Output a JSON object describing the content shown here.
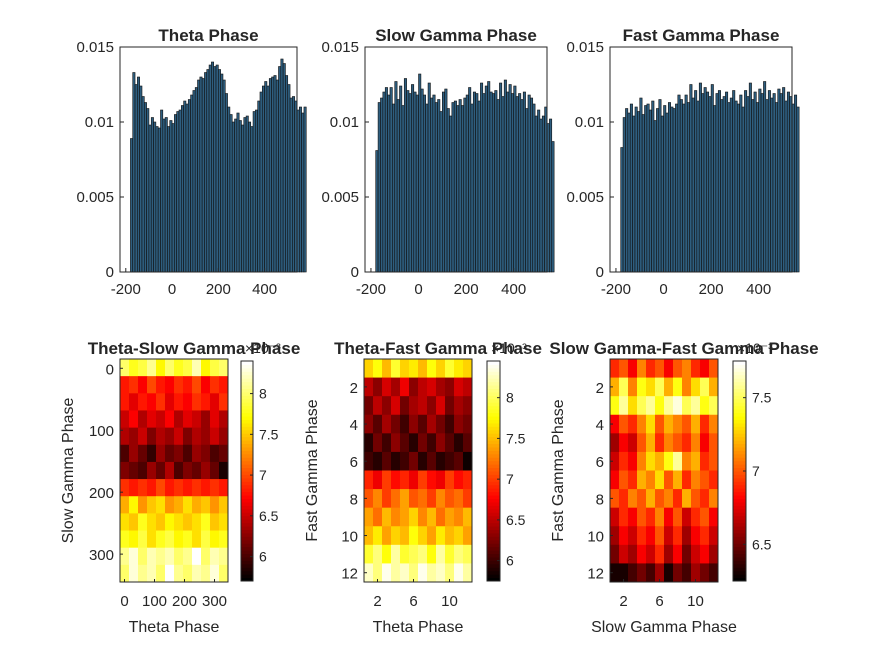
{
  "colors": {
    "bar_face": "#2e5e7f",
    "bar_edge": "#111111",
    "axis": "#262626",
    "colormap": "hot"
  },
  "chart_data": [
    {
      "type": "bar",
      "title": "Theta Phase",
      "xlabel": "",
      "ylabel": "",
      "xlim": [
        -225,
        540
      ],
      "ylim": [
        0,
        0.015
      ],
      "xticks": [
        "-200",
        "0",
        "200",
        "400"
      ],
      "xtick_values": [
        -200,
        0,
        200,
        400
      ],
      "yticks": [
        "0",
        "0.005",
        "0.01",
        "0.015"
      ],
      "ytick_values": [
        0,
        0.005,
        0.01,
        0.015
      ],
      "x_start": -180,
      "bin_width": 10,
      "values": [
        0.0089,
        0.0133,
        0.0125,
        0.013,
        0.0124,
        0.0117,
        0.0113,
        0.0109,
        0.0098,
        0.0103,
        0.01,
        0.0097,
        0.0096,
        0.0108,
        0.0102,
        0.0103,
        0.0097,
        0.0101,
        0.0099,
        0.0105,
        0.0107,
        0.0108,
        0.0111,
        0.0114,
        0.0112,
        0.0115,
        0.0118,
        0.0121,
        0.0123,
        0.0128,
        0.013,
        0.0129,
        0.0133,
        0.0135,
        0.0138,
        0.014,
        0.0137,
        0.0138,
        0.0135,
        0.0132,
        0.0128,
        0.0119,
        0.011,
        0.0105,
        0.01,
        0.0102,
        0.0106,
        0.0101,
        0.0098,
        0.0103,
        0.0104,
        0.01,
        0.0097,
        0.0107,
        0.0108,
        0.0114,
        0.012,
        0.0124,
        0.0127,
        0.0124,
        0.0129,
        0.013,
        0.0131,
        0.0128,
        0.0137,
        0.0142,
        0.0139,
        0.0131,
        0.0125,
        0.0116,
        0.0117,
        0.0114,
        0.0108,
        0.011,
        0.0106,
        0.011
      ]
    },
    {
      "type": "bar",
      "title": "Slow Gamma Phase",
      "xlabel": "",
      "ylabel": "",
      "xlim": [
        -225,
        540
      ],
      "ylim": [
        0,
        0.015
      ],
      "xticks": [
        "-200",
        "0",
        "200",
        "400"
      ],
      "xtick_values": [
        -200,
        0,
        200,
        400
      ],
      "yticks": [
        "0",
        "0.005",
        "0.01",
        "0.015"
      ],
      "ytick_values": [
        0,
        0.005,
        0.01,
        0.015
      ],
      "x_start": -180,
      "bin_width": 10,
      "values": [
        0.0081,
        0.0113,
        0.0116,
        0.012,
        0.0123,
        0.0118,
        0.0123,
        0.0112,
        0.0127,
        0.0115,
        0.0124,
        0.0111,
        0.0129,
        0.0121,
        0.0119,
        0.0125,
        0.012,
        0.0118,
        0.0132,
        0.0122,
        0.0118,
        0.0112,
        0.0126,
        0.0116,
        0.0118,
        0.0113,
        0.0115,
        0.0107,
        0.012,
        0.0122,
        0.0109,
        0.0104,
        0.0113,
        0.0114,
        0.0111,
        0.0115,
        0.0111,
        0.0116,
        0.0118,
        0.0123,
        0.0112,
        0.012,
        0.0119,
        0.0114,
        0.0126,
        0.0119,
        0.0124,
        0.0127,
        0.012,
        0.0119,
        0.0121,
        0.0115,
        0.0126,
        0.0117,
        0.0128,
        0.012,
        0.0125,
        0.0119,
        0.0124,
        0.0117,
        0.0119,
        0.0115,
        0.012,
        0.0109,
        0.0118,
        0.0116,
        0.0112,
        0.0104,
        0.0108,
        0.0102,
        0.0104,
        0.011,
        0.0099,
        0.0102,
        0.0087
      ]
    },
    {
      "type": "bar",
      "title": "Fast Gamma Phase",
      "xlabel": "",
      "ylabel": "",
      "xlim": [
        -225,
        540
      ],
      "ylim": [
        0,
        0.015
      ],
      "xticks": [
        "-200",
        "0",
        "200",
        "400"
      ],
      "xtick_values": [
        -200,
        0,
        200,
        400
      ],
      "yticks": [
        "0",
        "0.005",
        "0.01",
        "0.015"
      ],
      "ytick_values": [
        0,
        0.005,
        0.01,
        0.015
      ],
      "x_start": -180,
      "bin_width": 10,
      "values": [
        0.0083,
        0.0103,
        0.0109,
        0.0106,
        0.0112,
        0.0104,
        0.011,
        0.0107,
        0.0116,
        0.0105,
        0.0111,
        0.0112,
        0.0108,
        0.0114,
        0.0101,
        0.0109,
        0.0115,
        0.0104,
        0.0111,
        0.0106,
        0.0113,
        0.011,
        0.0109,
        0.0112,
        0.0118,
        0.0115,
        0.0112,
        0.0118,
        0.0113,
        0.0125,
        0.0116,
        0.0121,
        0.0114,
        0.0126,
        0.0119,
        0.0123,
        0.012,
        0.0117,
        0.0125,
        0.0111,
        0.0119,
        0.0121,
        0.0115,
        0.0117,
        0.012,
        0.0113,
        0.0116,
        0.0121,
        0.0114,
        0.0112,
        0.0118,
        0.011,
        0.0121,
        0.0117,
        0.0126,
        0.0115,
        0.012,
        0.0113,
        0.0122,
        0.0119,
        0.0127,
        0.0115,
        0.0121,
        0.0116,
        0.0119,
        0.0113,
        0.0122,
        0.0119,
        0.0123,
        0.0114,
        0.012,
        0.0117,
        0.0112,
        0.0118,
        0.011
      ]
    },
    {
      "type": "heatmap",
      "title": "Theta-Slow Gamma Phase",
      "xlabel": "Theta Phase",
      "ylabel": "Slow Gamma Phase",
      "x_extent": [
        -15,
        345
      ],
      "y_extent": [
        -15,
        345
      ],
      "xticks": [
        "0",
        "100",
        "200",
        "300"
      ],
      "xtick_values": [
        0,
        100,
        200,
        300
      ],
      "yticks": [
        "0",
        "100",
        "200",
        "300"
      ],
      "ytick_values": [
        0,
        100,
        200,
        300
      ],
      "clim": [
        5.7,
        8.4
      ],
      "colorbar_ticks": [
        "6",
        "6.5",
        "7",
        "7.5",
        "8"
      ],
      "colorbar_tick_values": [
        6,
        6.5,
        7,
        7.5,
        8
      ],
      "colorbar_exponent": "×10⁻³",
      "values": [
        [
          8.0,
          7.8,
          7.9,
          8.1,
          7.7,
          8.0,
          7.8,
          7.9,
          8.2,
          7.7,
          7.9,
          8.0
        ],
        [
          6.8,
          6.9,
          6.7,
          7.0,
          6.8,
          6.7,
          6.9,
          6.8,
          7.0,
          6.7,
          6.9,
          6.8
        ],
        [
          6.8,
          6.6,
          6.8,
          6.7,
          6.9,
          6.6,
          6.8,
          6.7,
          6.9,
          6.8,
          6.6,
          6.9
        ],
        [
          6.5,
          6.7,
          6.4,
          6.6,
          6.5,
          6.7,
          6.4,
          6.6,
          6.5,
          6.3,
          6.6,
          6.4
        ],
        [
          6.4,
          6.3,
          6.5,
          6.2,
          6.4,
          6.3,
          6.5,
          6.2,
          6.4,
          6.3,
          6.5,
          6.3
        ],
        [
          6.0,
          6.3,
          6.1,
          5.9,
          6.3,
          6.1,
          6.2,
          6.0,
          6.3,
          6.2,
          6.0,
          6.1
        ],
        [
          6.2,
          6.1,
          6.0,
          6.3,
          6.1,
          6.4,
          6.0,
          6.2,
          6.1,
          6.3,
          6.1,
          5.8
        ],
        [
          6.9,
          6.8,
          6.9,
          6.8,
          7.0,
          6.8,
          6.9,
          6.8,
          6.9,
          6.8,
          6.9,
          6.8
        ],
        [
          7.4,
          7.7,
          7.3,
          7.5,
          7.6,
          7.3,
          7.4,
          7.6,
          7.4,
          7.5,
          7.3,
          7.5
        ],
        [
          7.6,
          7.5,
          7.8,
          7.6,
          7.5,
          7.7,
          7.6,
          7.5,
          7.6,
          7.8,
          7.5,
          7.6
        ],
        [
          7.8,
          7.7,
          7.9,
          7.6,
          7.8,
          7.9,
          7.7,
          7.8,
          7.6,
          7.9,
          7.7,
          7.8
        ],
        [
          8.1,
          8.3,
          8.0,
          8.2,
          8.1,
          8.2,
          8.0,
          8.1,
          8.4,
          8.0,
          8.2,
          8.1
        ],
        [
          8.0,
          8.3,
          8.1,
          8.2,
          8.0,
          8.4,
          8.1,
          8.0,
          8.2,
          8.1,
          8.3,
          8.0
        ]
      ]
    },
    {
      "type": "heatmap",
      "title": "Theta-Fast Gamma Phase",
      "xlabel": "Theta Phase",
      "ylabel": "Fast Gamma Phase",
      "x_extent": [
        0.5,
        12.5
      ],
      "y_extent": [
        0.5,
        12.5
      ],
      "xticks": [
        "2",
        "6",
        "10"
      ],
      "xtick_values": [
        2,
        6,
        10
      ],
      "yticks": [
        "2",
        "4",
        "6",
        "8",
        "10",
        "12"
      ],
      "ytick_values": [
        2,
        4,
        6,
        8,
        10,
        12
      ],
      "clim": [
        5.75,
        8.45
      ],
      "colorbar_ticks": [
        "6",
        "6.5",
        "7",
        "7.5",
        "8"
      ],
      "colorbar_tick_values": [
        6,
        6.5,
        7,
        7.5,
        8
      ],
      "colorbar_exponent": "×10⁻³",
      "values": [
        [
          7.6,
          7.8,
          7.5,
          7.9,
          7.6,
          7.7,
          7.5,
          7.8,
          7.6,
          7.9,
          7.7,
          7.6
        ],
        [
          6.5,
          6.3,
          6.6,
          6.4,
          6.7,
          6.3,
          6.5,
          6.6,
          6.4,
          6.3,
          6.6,
          6.5
        ],
        [
          6.2,
          6.5,
          6.3,
          6.6,
          6.2,
          6.4,
          6.5,
          6.3,
          6.6,
          6.2,
          6.4,
          6.3
        ],
        [
          6.3,
          6.1,
          6.4,
          6.2,
          6.0,
          6.3,
          6.1,
          6.4,
          6.2,
          6.0,
          6.3,
          6.2
        ],
        [
          5.9,
          6.2,
          6.0,
          6.3,
          6.1,
          5.9,
          6.2,
          6.0,
          6.3,
          6.1,
          5.9,
          6.1
        ],
        [
          6.0,
          5.9,
          6.1,
          5.9,
          6.0,
          6.2,
          5.9,
          6.1,
          5.9,
          6.0,
          6.1,
          5.8
        ],
        [
          6.9,
          6.7,
          7.0,
          6.8,
          6.9,
          6.7,
          7.0,
          6.8,
          6.7,
          7.0,
          6.8,
          6.9
        ],
        [
          7.1,
          7.3,
          7.0,
          7.2,
          7.4,
          7.1,
          7.2,
          7.0,
          7.3,
          7.1,
          7.2,
          7.0
        ],
        [
          7.4,
          7.2,
          7.5,
          7.3,
          7.4,
          7.6,
          7.3,
          7.5,
          7.2,
          7.4,
          7.3,
          7.5
        ],
        [
          7.5,
          7.7,
          7.4,
          7.6,
          7.5,
          7.8,
          7.6,
          7.4,
          7.7,
          7.5,
          7.6,
          7.4
        ],
        [
          7.9,
          8.1,
          7.8,
          8.2,
          7.9,
          8.0,
          8.1,
          7.8,
          8.2,
          7.9,
          8.1,
          8.0
        ],
        [
          8.3,
          8.1,
          8.4,
          8.2,
          8.3,
          8.1,
          8.4,
          8.2,
          8.3,
          8.1,
          8.4,
          8.2
        ]
      ]
    },
    {
      "type": "heatmap",
      "title": "Slow Gamma-Fast Gamma Phase",
      "xlabel": "Slow Gamma Phase",
      "ylabel": "Fast Gamma Phase",
      "x_extent": [
        0.5,
        12.5
      ],
      "y_extent": [
        0.5,
        12.5
      ],
      "xticks": [
        "2",
        "6",
        "10"
      ],
      "xtick_values": [
        2,
        6,
        10
      ],
      "yticks": [
        "2",
        "4",
        "6",
        "8",
        "10",
        "12"
      ],
      "ytick_values": [
        2,
        4,
        6,
        8,
        10,
        12
      ],
      "clim": [
        6.25,
        7.75
      ],
      "colorbar_ticks": [
        "6.5",
        "7",
        "7.5"
      ],
      "colorbar_tick_values": [
        6.5,
        7,
        7.5
      ],
      "colorbar_exponent": "×10⁻³",
      "values": [
        [
          6.9,
          7.0,
          6.8,
          7.1,
          6.9,
          7.0,
          6.8,
          7.0,
          7.1,
          6.9,
          6.8,
          7.0
        ],
        [
          7.2,
          7.5,
          7.1,
          7.4,
          7.3,
          7.5,
          7.2,
          7.4,
          7.1,
          7.3,
          7.5,
          7.2
        ],
        [
          7.4,
          7.6,
          7.3,
          7.5,
          7.6,
          7.4,
          7.6,
          7.7,
          7.5,
          7.6,
          7.4,
          7.5
        ],
        [
          6.8,
          7.0,
          6.9,
          7.1,
          7.3,
          7.0,
          7.2,
          7.1,
          7.0,
          7.2,
          6.9,
          7.1
        ],
        [
          6.6,
          6.8,
          6.7,
          7.0,
          7.2,
          6.9,
          7.1,
          7.0,
          6.9,
          7.1,
          6.8,
          7.0
        ],
        [
          6.7,
          6.9,
          6.8,
          7.1,
          7.3,
          7.2,
          7.4,
          7.6,
          7.1,
          7.2,
          6.9,
          7.0
        ],
        [
          6.8,
          7.0,
          6.9,
          7.2,
          7.1,
          7.3,
          7.0,
          7.2,
          6.9,
          7.1,
          7.0,
          6.9
        ],
        [
          7.0,
          6.9,
          7.1,
          7.0,
          7.2,
          7.0,
          7.1,
          6.9,
          7.2,
          7.0,
          6.9,
          7.1
        ],
        [
          6.7,
          6.9,
          6.8,
          7.0,
          6.9,
          7.1,
          6.8,
          7.0,
          6.7,
          6.9,
          7.0,
          6.8
        ],
        [
          6.6,
          6.8,
          6.7,
          6.9,
          6.8,
          7.0,
          6.7,
          6.9,
          6.6,
          6.8,
          6.9,
          6.7
        ],
        [
          6.5,
          6.7,
          6.6,
          6.8,
          6.7,
          6.9,
          6.6,
          6.8,
          6.5,
          6.7,
          6.8,
          6.6
        ],
        [
          6.3,
          6.3,
          6.4,
          6.5,
          6.4,
          6.6,
          6.3,
          6.5,
          6.4,
          6.6,
          6.5,
          6.4
        ]
      ]
    }
  ]
}
